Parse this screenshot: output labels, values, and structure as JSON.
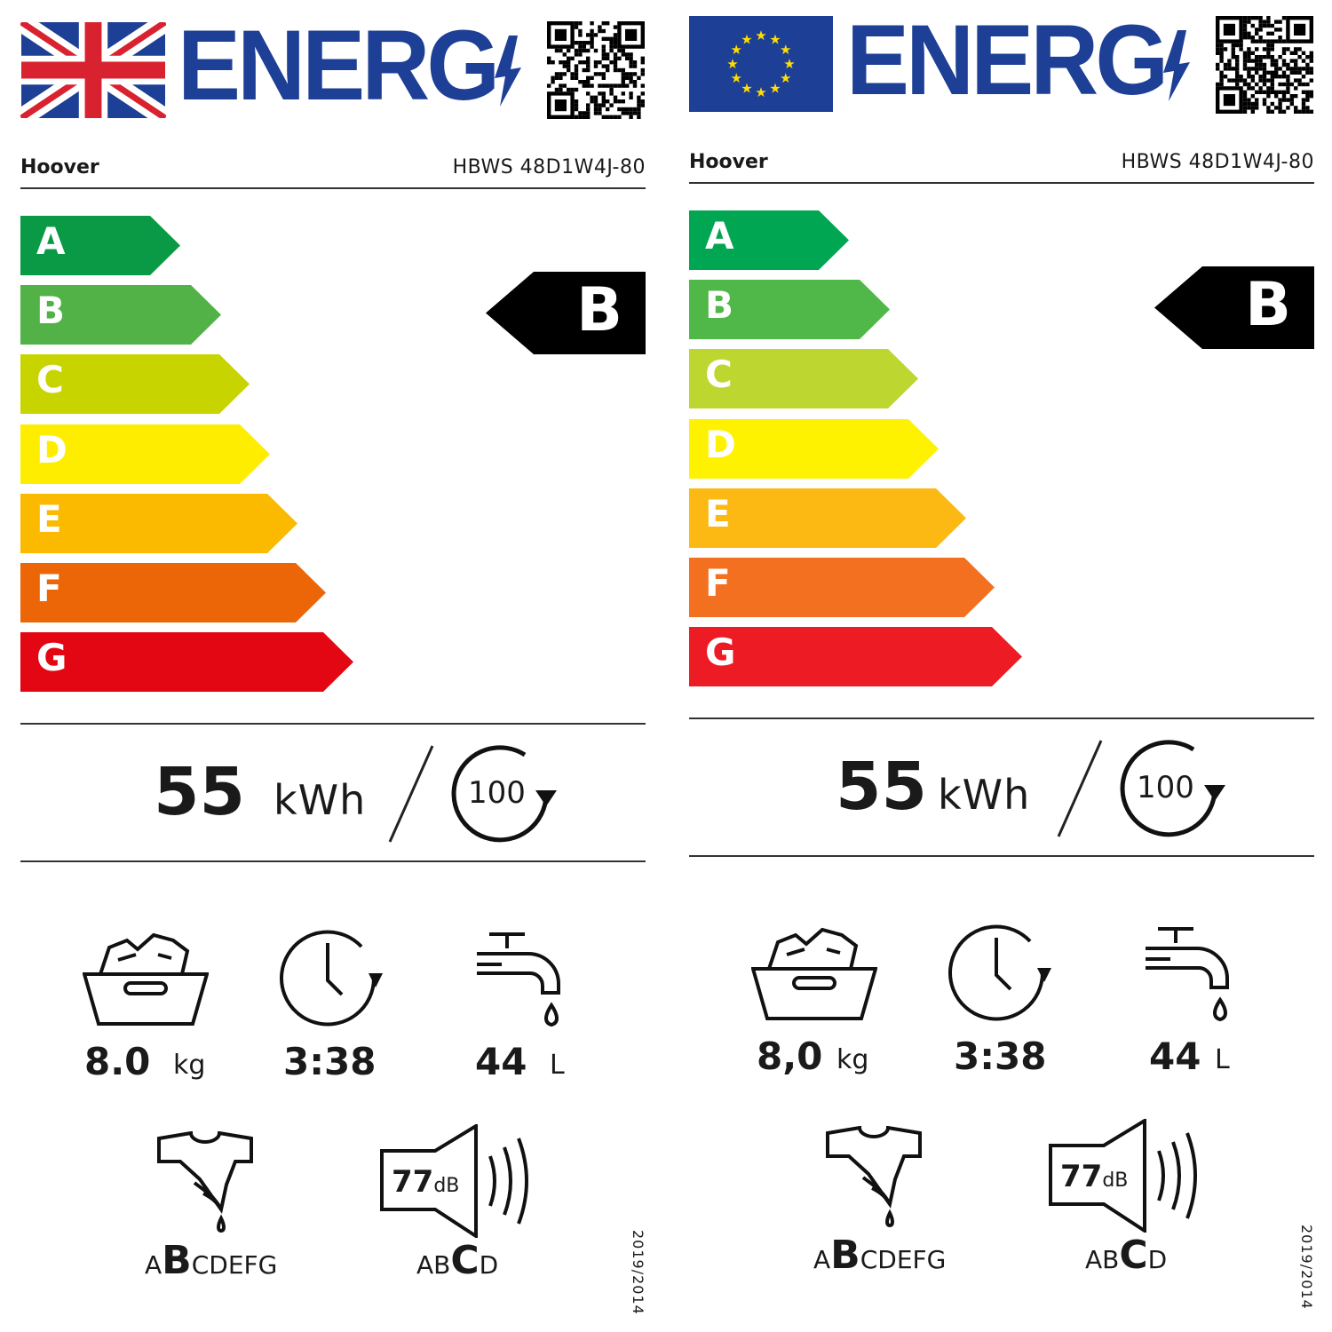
{
  "labels": [
    {
      "region": "UK",
      "energy_word": "ENERG",
      "brand": "Hoover",
      "model": "HBWS 48D1W4J-80",
      "classes": [
        "A",
        "B",
        "C",
        "D",
        "E",
        "F",
        "G"
      ],
      "class_colors": [
        "#0a9a45",
        "#52b247",
        "#c8d400",
        "#ffed00",
        "#fbb900",
        "#ec6608",
        "#e30613"
      ],
      "rating": "B",
      "energy_value": "55",
      "energy_unit": "kWh",
      "cycles": "100",
      "capacity_value": "8.0",
      "capacity_unit": "kg",
      "duration_value": "3:38",
      "water_value": "44",
      "water_unit": "L",
      "spin_scale": {
        "before": "A",
        "selected": "B",
        "after": "CDEFG"
      },
      "noise_value": "77",
      "noise_unit": "dB",
      "noise_scale": {
        "before": "AB",
        "selected": "C",
        "after": "D"
      },
      "regulation": "2019/2014"
    },
    {
      "region": "EU",
      "energy_word": "ENERG",
      "brand": "Hoover",
      "model": "HBWS 48D1W4J-80",
      "classes": [
        "A",
        "B",
        "C",
        "D",
        "E",
        "F",
        "G"
      ],
      "class_colors": [
        "#00a651",
        "#50b848",
        "#bed630",
        "#fff200",
        "#fdb913",
        "#f37021",
        "#ed1c24"
      ],
      "rating": "B",
      "energy_value": "55",
      "energy_unit": "kWh",
      "cycles": "100",
      "capacity_value": "8,0",
      "capacity_unit": "kg",
      "duration_value": "3:38",
      "water_value": "44",
      "water_unit": "L",
      "spin_scale": {
        "before": "A",
        "selected": "B",
        "after": "CDEFG"
      },
      "noise_value": "77",
      "noise_unit": "dB",
      "noise_scale": {
        "before": "AB",
        "selected": "C",
        "after": "D"
      },
      "regulation": "2019/2014"
    }
  ],
  "colors": {
    "energy_blue": "#1d3f95",
    "eu_blue": "#1d3f95",
    "eu_star": "#ffdd00",
    "uk_red": "#d8222f"
  }
}
